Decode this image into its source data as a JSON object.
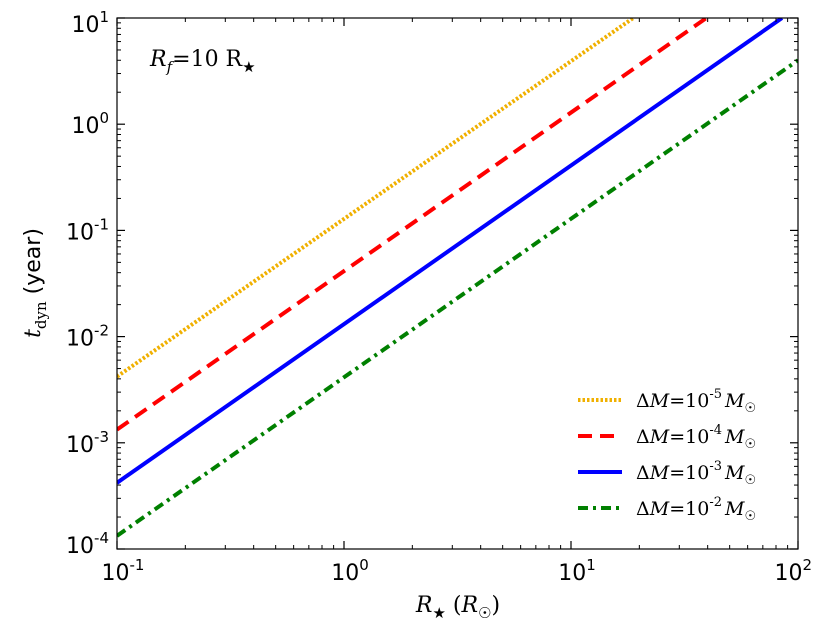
{
  "chart_data": {
    "type": "line",
    "xscale": "log",
    "yscale": "log",
    "xlim": [
      0.1,
      100
    ],
    "ylim": [
      0.0001,
      10
    ],
    "xlabel": "R★ (R☉)",
    "ylabel": "t_dyn (year)",
    "annotation": "R_f = 10 R★",
    "x_ticks": [
      {
        "base": "10",
        "exp": "-1",
        "value": 0.1
      },
      {
        "base": "10",
        "exp": "0",
        "value": 1
      },
      {
        "base": "10",
        "exp": "1",
        "value": 10
      },
      {
        "base": "10",
        "exp": "2",
        "value": 100
      }
    ],
    "y_ticks": [
      {
        "base": "10",
        "exp": "-4",
        "value": 0.0001
      },
      {
        "base": "10",
        "exp": "-3",
        "value": 0.001
      },
      {
        "base": "10",
        "exp": "-2",
        "value": 0.01
      },
      {
        "base": "10",
        "exp": "-1",
        "value": 0.1
      },
      {
        "base": "10",
        "exp": "0",
        "value": 1
      },
      {
        "base": "10",
        "exp": "1",
        "value": 10
      }
    ],
    "legend_location": "lower-right",
    "series": [
      {
        "name": "ΔM=10^-5 M☉",
        "delta_m_exp": "-5",
        "color": "#f0b000",
        "style": "dotted",
        "x": [
          0.1,
          18.8
        ],
        "y": [
          0.0042,
          10
        ]
      },
      {
        "name": "ΔM=10^-4 M☉",
        "delta_m_exp": "-4",
        "color": "#ff0000",
        "style": "dashed",
        "x": [
          0.1,
          39.5
        ],
        "y": [
          0.00133,
          10
        ]
      },
      {
        "name": "ΔM=10^-3 M☉",
        "delta_m_exp": "-3",
        "color": "#0000ff",
        "style": "solid",
        "x": [
          0.1,
          85
        ],
        "y": [
          0.00042,
          10
        ]
      },
      {
        "name": "ΔM=10^-2 M☉",
        "delta_m_exp": "-2",
        "color": "#008000",
        "style": "dashdot",
        "x": [
          0.1,
          100
        ],
        "y": [
          0.000133,
          4
        ]
      }
    ]
  }
}
